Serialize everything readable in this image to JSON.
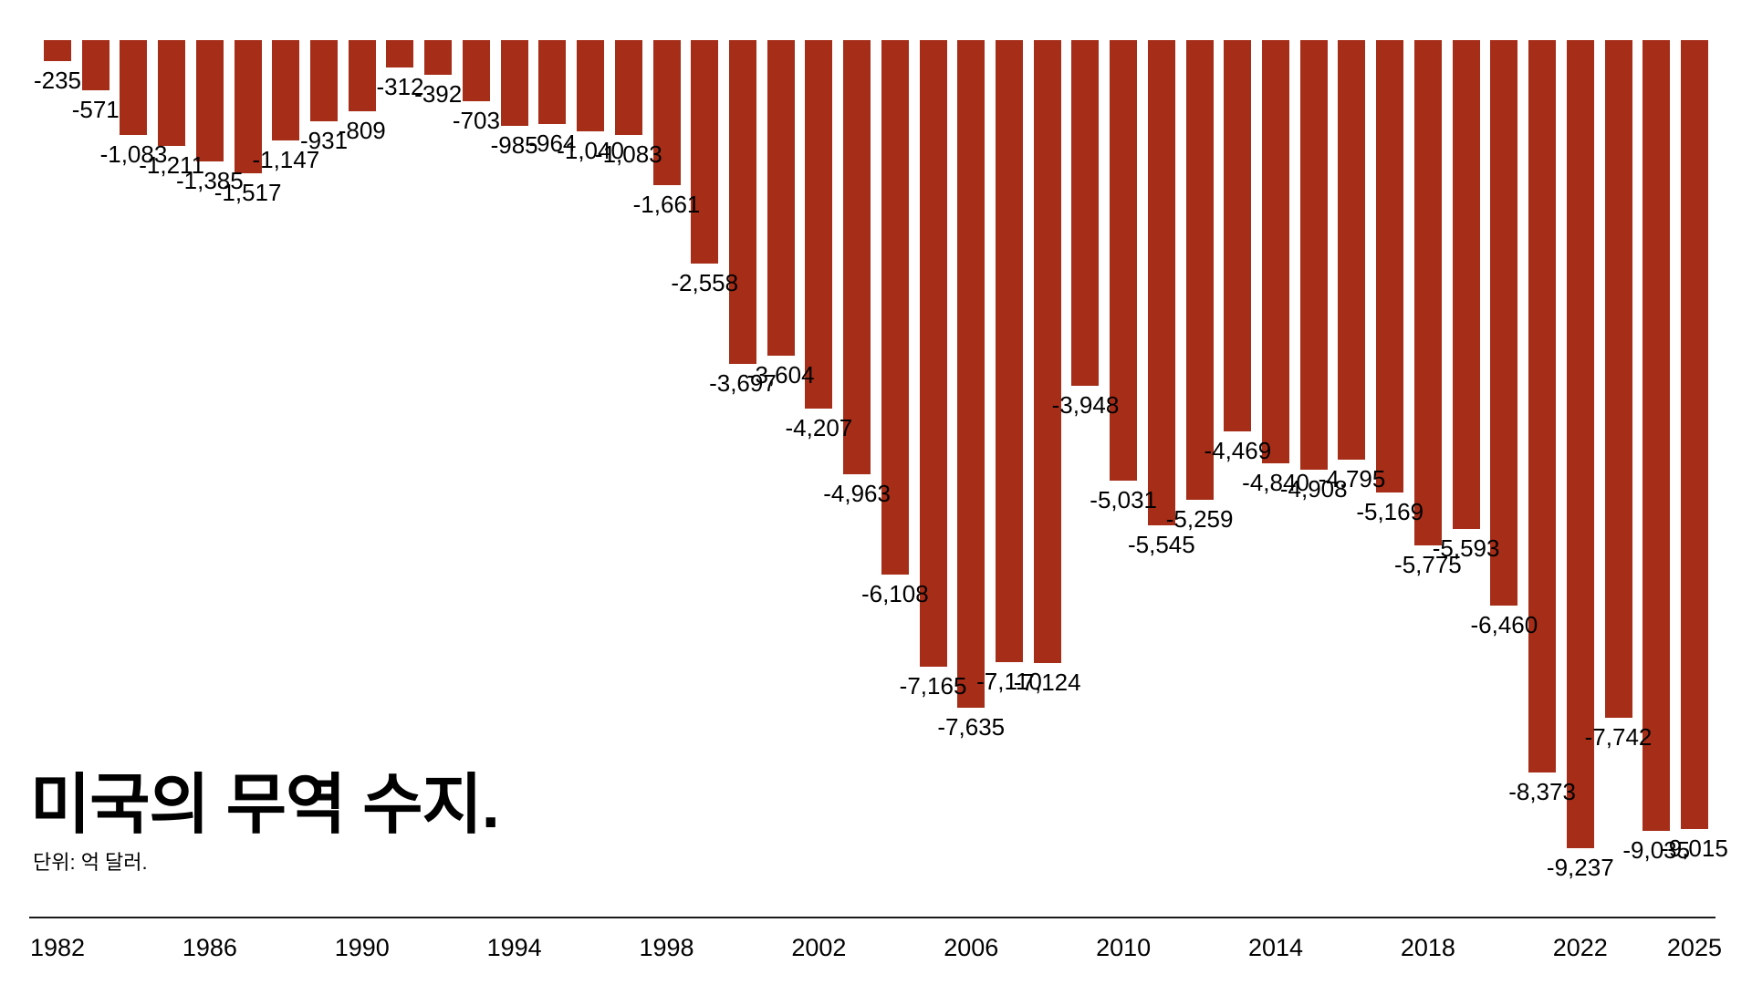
{
  "title": "미국의 무역 수지.",
  "subtitle": "단위: 억 달러.",
  "colors": {
    "bar": "#A62D18",
    "value_label": "#000000",
    "axis_line": "#1A1A1A"
  },
  "chart_data": {
    "type": "bar",
    "title": "미국의 무역 수지.",
    "unit_note": "단위: 억 달러.",
    "orientation": "columns hang downward from a zero baseline at the top (all values negative)",
    "grid": false,
    "legend": false,
    "ylim": [
      -9500,
      0
    ],
    "x": [
      1982,
      1983,
      1984,
      1985,
      1986,
      1987,
      1988,
      1989,
      1990,
      1991,
      1992,
      1993,
      1994,
      1995,
      1996,
      1997,
      1998,
      1999,
      2000,
      2001,
      2002,
      2003,
      2004,
      2005,
      2006,
      2007,
      2008,
      2009,
      2010,
      2011,
      2012,
      2013,
      2014,
      2015,
      2016,
      2017,
      2018,
      2019,
      2020,
      2021,
      2022,
      2023,
      2024,
      2025
    ],
    "values": [
      -235,
      -571,
      -1083,
      -1211,
      -1385,
      -1517,
      -1147,
      -931,
      -809,
      -312,
      -392,
      -703,
      -985,
      -964,
      -1040,
      -1083,
      -1661,
      -2558,
      -3697,
      -3604,
      -4207,
      -4963,
      -6108,
      -7165,
      -7635,
      -7110,
      -7124,
      -3948,
      -5031,
      -5545,
      -5259,
      -4469,
      -4840,
      -4908,
      -4795,
      -5169,
      -5775,
      -5593,
      -6460,
      -8373,
      -9237,
      -7742,
      -9035,
      -9015
    ],
    "value_labels": [
      "-235",
      "-571",
      "-1,083",
      "-1,211",
      "-1,385",
      "-1,517",
      "-1,147",
      "-931",
      "-809",
      "-312",
      "-392",
      "-703",
      "-985",
      "-964",
      "-1,040",
      "-1,083",
      "-1,661",
      "-2,558",
      "-3,697",
      "-3,604",
      "-4,207",
      "-4,963",
      "-6,108",
      "-7,165",
      "-7,635",
      "-7,110",
      "-7,124",
      "-3,948",
      "-5,031",
      "-5,545",
      "-5,259",
      "-4,469",
      "-4,840",
      "-4,908",
      "-4,795",
      "-5,169",
      "-5,775",
      "-5,593",
      "-6,460",
      "-8,373",
      "-9,237",
      "-7,742",
      "-9,035",
      "-9,015"
    ],
    "x_tick_labels": [
      "1982",
      "1986",
      "1990",
      "1994",
      "1998",
      "2002",
      "2006",
      "2010",
      "2014",
      "2018",
      "2022",
      "2025"
    ],
    "x_tick_years": [
      1982,
      1986,
      1990,
      1994,
      1998,
      2002,
      2006,
      2010,
      2014,
      2018,
      2022,
      2025
    ]
  }
}
